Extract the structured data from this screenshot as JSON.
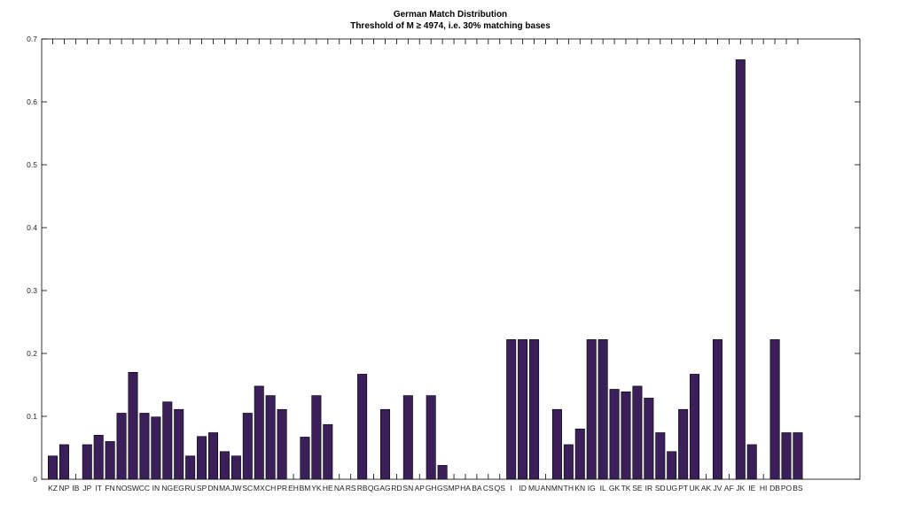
{
  "chart_data": {
    "type": "bar",
    "title": "German Match Distribution",
    "subtitle": "Threshold of M ≥ 4974, i.e. 30% matching bases",
    "xlabel": "",
    "ylabel": "",
    "ylim": [
      0,
      0.7
    ],
    "yticks": [
      "0",
      "0.1",
      "0.2",
      "0.3",
      "0.4",
      "0.5",
      "0.6",
      "0.7"
    ],
    "grid": false,
    "bar_color": "#3b1f5a",
    "categories": [
      "KZ",
      "NP",
      "IB",
      "JP",
      "IT",
      "FN",
      "NO",
      "SW",
      "CC",
      "IN",
      "NG",
      "EG",
      "RU",
      "SP",
      "DN",
      "MA",
      "JW",
      "SC",
      "MX",
      "CH",
      "PR",
      "EH",
      "BM",
      "YK",
      "HE",
      "NA",
      "RS",
      "RB",
      "QG",
      "AG",
      "RD",
      "SN",
      "AP",
      "GH",
      "GS",
      "MP",
      "HA",
      "BA",
      "CS",
      "QS",
      "I",
      "ID",
      "MU",
      "AN",
      "MN",
      "TH",
      "KN",
      "IG",
      "IL",
      "GK",
      "TK",
      "SE",
      "IR",
      "SD",
      "UG",
      "PT",
      "UK",
      "AK",
      "JV",
      "AF",
      "JK",
      "IE",
      "HI",
      "DB",
      "PO",
      "BS"
    ],
    "values": [
      0.037,
      0.055,
      0,
      0.055,
      0.07,
      0.06,
      0.105,
      0.17,
      0.105,
      0.099,
      0.123,
      0.111,
      0.037,
      0.068,
      0.074,
      0.044,
      0.037,
      0.105,
      0.148,
      0.133,
      0.111,
      0,
      0.067,
      0.133,
      0.087,
      0,
      0,
      0.167,
      0,
      0.111,
      0,
      0.133,
      0,
      0.133,
      0.022,
      0,
      0,
      0,
      0,
      0,
      0.222,
      0.222,
      0.222,
      0,
      0.111,
      0.055,
      0.08,
      0.222,
      0.222,
      0.143,
      0.139,
      0.148,
      0.129,
      0.074,
      0.044,
      0.111,
      0.167,
      0,
      0.222,
      0,
      0.667,
      0.055,
      0,
      0.222,
      0.074,
      0.074
    ]
  }
}
